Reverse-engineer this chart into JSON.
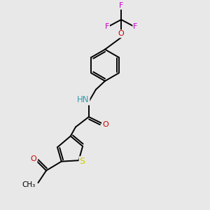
{
  "background_color": "#e8e8e8",
  "atom_colors": {
    "C": "#000000",
    "H": "#888888",
    "N": "#3399aa",
    "O": "#cc0000",
    "S": "#cccc00",
    "F": "#cc00cc"
  },
  "bond_color": "#000000",
  "bond_width": 1.4,
  "figsize": [
    3.0,
    3.0
  ],
  "dpi": 100,
  "font_size": 8.0
}
